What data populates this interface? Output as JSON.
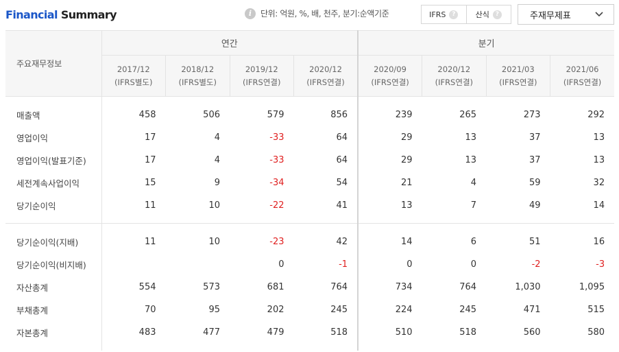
{
  "header": {
    "title_part1": "Financial",
    "title_part2": "Summary",
    "unit_text": "단위: 억원, %, 배, 천주, 분기:순액기준",
    "toggle": [
      "IFRS",
      "산식"
    ],
    "dropdown_label": "주재무제표"
  },
  "table": {
    "corner": "주요재무정보",
    "annual_label": "연간",
    "quarter_label": "분기",
    "columns": [
      {
        "date": "2017/12",
        "basis": "(IFRS별도)"
      },
      {
        "date": "2018/12",
        "basis": "(IFRS별도)"
      },
      {
        "date": "2019/12",
        "basis": "(IFRS연결)"
      },
      {
        "date": "2020/12",
        "basis": "(IFRS연결)"
      },
      {
        "date": "2020/09",
        "basis": "(IFRS연결)"
      },
      {
        "date": "2020/12",
        "basis": "(IFRS연결)"
      },
      {
        "date": "2021/03",
        "basis": "(IFRS연결)"
      },
      {
        "date": "2021/06",
        "basis": "(IFRS연결)"
      }
    ],
    "rows": [
      {
        "label": "매출액",
        "values": [
          "458",
          "506",
          "579",
          "856",
          "239",
          "265",
          "273",
          "292"
        ]
      },
      {
        "label": "영업이익",
        "values": [
          "17",
          "4",
          "-33",
          "64",
          "29",
          "13",
          "37",
          "13"
        ]
      },
      {
        "label": "영업이익(발표기준)",
        "values": [
          "17",
          "4",
          "-33",
          "64",
          "29",
          "13",
          "37",
          "13"
        ]
      },
      {
        "label": "세전계속사업이익",
        "values": [
          "15",
          "9",
          "-34",
          "54",
          "21",
          "4",
          "59",
          "32"
        ]
      },
      {
        "label": "당기순이익",
        "values": [
          "11",
          "10",
          "-22",
          "41",
          "13",
          "7",
          "49",
          "14"
        ]
      },
      {
        "label": "당기순이익(지배)",
        "values": [
          "11",
          "10",
          "-23",
          "42",
          "14",
          "6",
          "51",
          "16"
        ]
      },
      {
        "label": "당기순이익(비지배)",
        "values": [
          "",
          "",
          "0",
          "-1",
          "0",
          "0",
          "-2",
          "-3"
        ]
      },
      {
        "label": "자산총계",
        "values": [
          "554",
          "573",
          "681",
          "764",
          "734",
          "764",
          "1,030",
          "1,095"
        ]
      },
      {
        "label": "부채총계",
        "values": [
          "70",
          "95",
          "202",
          "245",
          "224",
          "245",
          "471",
          "515"
        ]
      },
      {
        "label": "자본총계",
        "values": [
          "483",
          "477",
          "479",
          "518",
          "510",
          "518",
          "560",
          "580"
        ]
      }
    ]
  },
  "colors": {
    "title_accent": "#1a56c8",
    "negative": "#e02020"
  }
}
